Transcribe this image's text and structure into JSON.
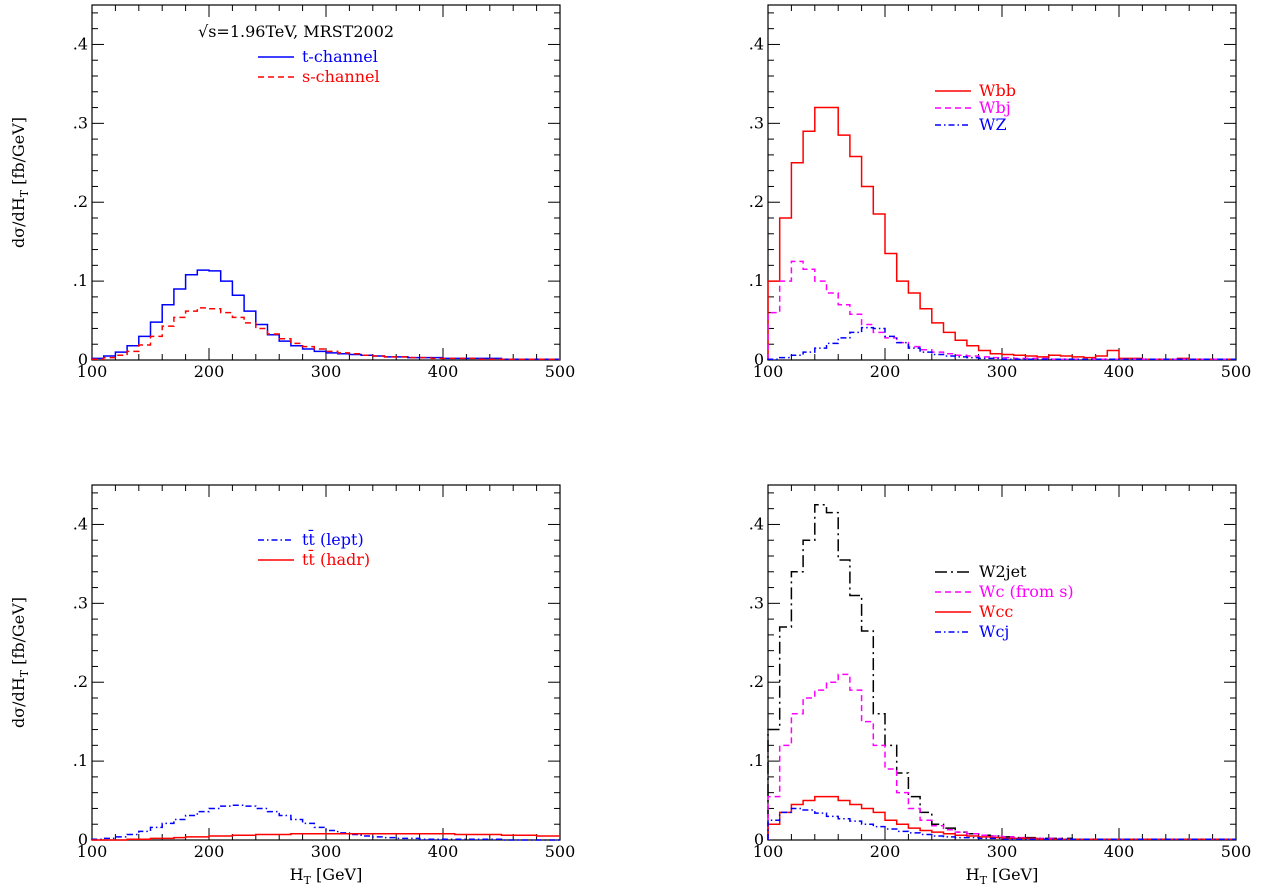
{
  "chart_data": [
    {
      "type": "line",
      "step": true,
      "ylabel": "dσ/dH_T [fb/GeV]",
      "xlabel": "",
      "xlim": [
        100,
        500
      ],
      "ylim": [
        0,
        0.45
      ],
      "yticklabels": [
        "0",
        ".1",
        ".2",
        ".3",
        ".4"
      ],
      "xticklabels": [
        "100",
        "200",
        "300",
        "400",
        "500"
      ],
      "annotation": "√s=1.96TeV, MRST2002",
      "legend_position": "top-center",
      "x": [
        100,
        110,
        120,
        130,
        140,
        150,
        160,
        170,
        180,
        190,
        200,
        210,
        220,
        230,
        240,
        250,
        260,
        270,
        280,
        290,
        300,
        310,
        320,
        330,
        340,
        350,
        360,
        370,
        380,
        390,
        400,
        410,
        420,
        430,
        440,
        450,
        460,
        470,
        480,
        490
      ],
      "series": [
        {
          "name": "t-channel",
          "color": "#0000ff",
          "style": "solid",
          "values": [
            0.002,
            0.005,
            0.01,
            0.018,
            0.03,
            0.048,
            0.07,
            0.09,
            0.108,
            0.114,
            0.113,
            0.1,
            0.082,
            0.062,
            0.045,
            0.032,
            0.024,
            0.018,
            0.014,
            0.011,
            0.009,
            0.008,
            0.007,
            0.006,
            0.005,
            0.004,
            0.004,
            0.003,
            0.003,
            0.003,
            0.002,
            0.002,
            0.002,
            0.002,
            0.002,
            0.001,
            0.001,
            0.001,
            0.001,
            0.001
          ]
        },
        {
          "name": "s-channel",
          "color": "#ff0000",
          "style": "dashed",
          "values": [
            0.001,
            0.003,
            0.006,
            0.011,
            0.019,
            0.03,
            0.043,
            0.054,
            0.062,
            0.066,
            0.065,
            0.06,
            0.054,
            0.047,
            0.04,
            0.033,
            0.027,
            0.021,
            0.017,
            0.014,
            0.011,
            0.009,
            0.008,
            0.006,
            0.005,
            0.004,
            0.004,
            0.003,
            0.003,
            0.002,
            0.002,
            0.002,
            0.002,
            0.001,
            0.001,
            0.001,
            0.001,
            0.001,
            0.001,
            0.001
          ]
        }
      ]
    },
    {
      "type": "line",
      "step": true,
      "ylabel": "",
      "xlabel": "",
      "xlim": [
        100,
        500
      ],
      "ylim": [
        0,
        0.45
      ],
      "yticklabels": [
        "0",
        ".1",
        ".2",
        ".3",
        ".4"
      ],
      "xticklabels": [
        "100",
        "200",
        "300",
        "400",
        "500"
      ],
      "legend_position": "top-center",
      "x": [
        100,
        110,
        120,
        130,
        140,
        150,
        160,
        170,
        180,
        190,
        200,
        210,
        220,
        230,
        240,
        250,
        260,
        270,
        280,
        290,
        300,
        310,
        320,
        330,
        340,
        350,
        360,
        370,
        380,
        390,
        400,
        410,
        420,
        430,
        440,
        450,
        460,
        470,
        480,
        490
      ],
      "series": [
        {
          "name": "Wbb",
          "color": "#ff0000",
          "style": "solid",
          "values": [
            0.1,
            0.18,
            0.25,
            0.29,
            0.32,
            0.32,
            0.285,
            0.258,
            0.22,
            0.185,
            0.135,
            0.1,
            0.085,
            0.065,
            0.047,
            0.035,
            0.025,
            0.018,
            0.012,
            0.008,
            0.007,
            0.006,
            0.005,
            0.004,
            0.006,
            0.005,
            0.004,
            0.003,
            0.005,
            0.012,
            0.002,
            0.002,
            0.001,
            0.001,
            0.001,
            0.002,
            0.001,
            0.001,
            0.001,
            0.001
          ]
        },
        {
          "name": "Wbj",
          "color": "#ff00ff",
          "style": "dashed",
          "values": [
            0.06,
            0.1,
            0.125,
            0.115,
            0.1,
            0.085,
            0.07,
            0.058,
            0.045,
            0.035,
            0.028,
            0.022,
            0.017,
            0.013,
            0.01,
            0.008,
            0.006,
            0.005,
            0.004,
            0.003,
            0.003,
            0.002,
            0.002,
            0.002,
            0.001,
            0.001,
            0.001,
            0.001,
            0.001,
            0.001,
            0.001,
            0.001,
            0.001,
            0.001,
            0.001,
            0.001,
            0.001,
            0.001,
            0.001,
            0.001
          ]
        },
        {
          "name": "WZ",
          "color": "#0000ff",
          "style": "dashdot",
          "values": [
            0.001,
            0.003,
            0.006,
            0.01,
            0.015,
            0.021,
            0.028,
            0.035,
            0.041,
            0.04,
            0.03,
            0.022,
            0.015,
            0.01,
            0.007,
            0.005,
            0.004,
            0.003,
            0.002,
            0.002,
            0.001,
            0.001,
            0.001,
            0.001,
            0.001,
            0.001,
            0.001,
            0.001,
            0.001,
            0.001,
            0.001,
            0.001,
            0.001,
            0.001,
            0.001,
            0.001,
            0.001,
            0.001,
            0.001,
            0.001
          ]
        }
      ]
    },
    {
      "type": "line",
      "step": true,
      "ylabel": "dσ/dH_T [fb/GeV]",
      "xlabel": "H_T [GeV]",
      "xlim": [
        100,
        500
      ],
      "ylim": [
        0,
        0.45
      ],
      "yticklabels": [
        "0",
        ".1",
        ".2",
        ".3",
        ".4"
      ],
      "xticklabels": [
        "100",
        "200",
        "300",
        "400",
        "500"
      ],
      "legend_position": "top-center",
      "x": [
        100,
        110,
        120,
        130,
        140,
        150,
        160,
        170,
        180,
        190,
        200,
        210,
        220,
        230,
        240,
        250,
        260,
        270,
        280,
        290,
        300,
        310,
        320,
        330,
        340,
        350,
        360,
        370,
        380,
        390,
        400,
        410,
        420,
        430,
        440,
        450,
        460,
        470,
        480,
        490
      ],
      "series": [
        {
          "name": "tt̄ (lept)",
          "color": "#0000ff",
          "style": "dashdot",
          "values": [
            0.001,
            0.002,
            0.004,
            0.007,
            0.011,
            0.016,
            0.021,
            0.026,
            0.031,
            0.036,
            0.04,
            0.043,
            0.044,
            0.043,
            0.04,
            0.036,
            0.031,
            0.026,
            0.021,
            0.016,
            0.012,
            0.009,
            0.007,
            0.005,
            0.004,
            0.003,
            0.002,
            0.002,
            0.001,
            0.001,
            0.001,
            0.001,
            0.001,
            0.001,
            0.001,
            0,
            0,
            0,
            0,
            0
          ]
        },
        {
          "name": "tt̄ (hadr)",
          "color": "#ff0000",
          "style": "solid",
          "values": [
            0,
            0,
            0,
            0.001,
            0.001,
            0.002,
            0.002,
            0.003,
            0.004,
            0.004,
            0.005,
            0.005,
            0.006,
            0.006,
            0.007,
            0.007,
            0.007,
            0.008,
            0.008,
            0.008,
            0.008,
            0.008,
            0.008,
            0.008,
            0.008,
            0.008,
            0.008,
            0.008,
            0.008,
            0.008,
            0.008,
            0.007,
            0.007,
            0.007,
            0.007,
            0.006,
            0.006,
            0.006,
            0.005,
            0.005
          ]
        }
      ]
    },
    {
      "type": "line",
      "step": true,
      "ylabel": "",
      "xlabel": "H_T [GeV]",
      "xlim": [
        100,
        500
      ],
      "ylim": [
        0,
        0.45
      ],
      "yticklabels": [
        "0",
        ".1",
        ".2",
        ".3",
        ".4"
      ],
      "xticklabels": [
        "100",
        "200",
        "300",
        "400",
        "500"
      ],
      "legend_position": "center-right",
      "x": [
        100,
        110,
        120,
        130,
        140,
        150,
        160,
        170,
        180,
        190,
        200,
        210,
        220,
        230,
        240,
        250,
        260,
        270,
        280,
        290,
        300,
        310,
        320,
        330,
        340,
        350,
        360,
        370,
        380,
        390,
        400,
        410,
        420,
        430,
        440,
        450,
        460,
        470,
        480,
        490
      ],
      "series": [
        {
          "name": "W2jet",
          "color": "#000000",
          "style": "longdash",
          "values": [
            0.14,
            0.27,
            0.34,
            0.38,
            0.425,
            0.415,
            0.355,
            0.31,
            0.265,
            0.16,
            0.12,
            0.085,
            0.055,
            0.035,
            0.02,
            0.015,
            0.01,
            0.008,
            0.006,
            0.005,
            0.004,
            0.003,
            0.003,
            0.002,
            0.002,
            0.002,
            0.001,
            0.001,
            0.001,
            0.001,
            0.001,
            0.001,
            0.001,
            0.001,
            0.001,
            0.001,
            0.001,
            0.001,
            0.001,
            0.001
          ]
        },
        {
          "name": "Wc (from s)",
          "color": "#ff00ff",
          "style": "dashed",
          "values": [
            0.055,
            0.12,
            0.16,
            0.18,
            0.19,
            0.2,
            0.21,
            0.19,
            0.15,
            0.12,
            0.09,
            0.06,
            0.04,
            0.025,
            0.018,
            0.013,
            0.01,
            0.008,
            0.006,
            0.005,
            0.004,
            0.003,
            0.002,
            0.002,
            0.002,
            0.001,
            0.001,
            0.001,
            0.001,
            0.001,
            0.001,
            0.001,
            0.001,
            0.001,
            0.001,
            0.001,
            0.001,
            0.001,
            0.001,
            0.001
          ]
        },
        {
          "name": "Wcc",
          "color": "#ff0000",
          "style": "solid",
          "values": [
            0.02,
            0.035,
            0.045,
            0.05,
            0.055,
            0.055,
            0.05,
            0.045,
            0.04,
            0.035,
            0.025,
            0.02,
            0.015,
            0.012,
            0.01,
            0.008,
            0.006,
            0.005,
            0.004,
            0.003,
            0.002,
            0.002,
            0.002,
            0.001,
            0.001,
            0.001,
            0.001,
            0.001,
            0.001,
            0.001,
            0.001,
            0.001,
            0.001,
            0.001,
            0.001,
            0.001,
            0.001,
            0.001,
            0.001,
            0.001
          ]
        },
        {
          "name": "Wcj",
          "color": "#0000ff",
          "style": "dashdot",
          "values": [
            0.025,
            0.035,
            0.04,
            0.038,
            0.034,
            0.03,
            0.027,
            0.024,
            0.02,
            0.017,
            0.014,
            0.011,
            0.009,
            0.007,
            0.005,
            0.004,
            0.003,
            0.003,
            0.002,
            0.002,
            0.001,
            0.001,
            0.001,
            0.001,
            0.001,
            0.001,
            0.001,
            0.001,
            0.001,
            0.001,
            0.001,
            0.001,
            0.001,
            0.001,
            0.001,
            0.001,
            0.001,
            0.001,
            0.001,
            0.001
          ]
        }
      ]
    }
  ]
}
